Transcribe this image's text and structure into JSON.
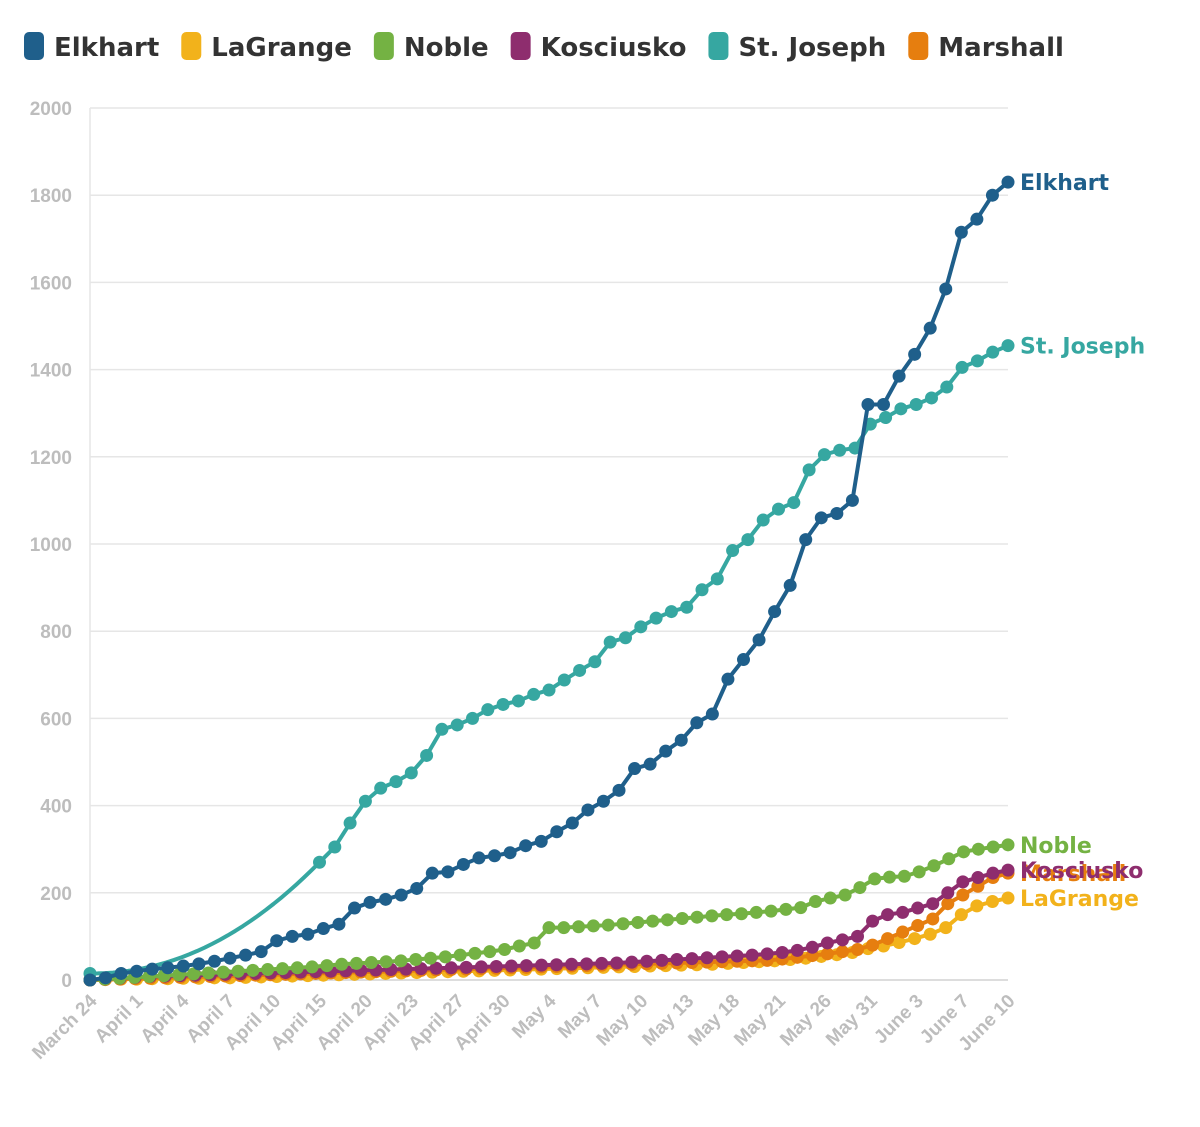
{
  "chart_data": {
    "type": "line",
    "ylim": [
      0,
      2000
    ],
    "yticks": [
      0,
      200,
      400,
      600,
      800,
      1000,
      1200,
      1400,
      1600,
      1800,
      2000
    ],
    "x_tick_labels": [
      {
        "label": "March 24",
        "day": 0
      },
      {
        "label": "April 1",
        "day": 3
      },
      {
        "label": "April 4",
        "day": 6
      },
      {
        "label": "April 7",
        "day": 9
      },
      {
        "label": "April 10",
        "day": 12
      },
      {
        "label": "April 15",
        "day": 15
      },
      {
        "label": "April 20",
        "day": 18
      },
      {
        "label": "April 23",
        "day": 21
      },
      {
        "label": "April 27",
        "day": 24
      },
      {
        "label": "April 30",
        "day": 27
      },
      {
        "label": "May 4",
        "day": 30
      },
      {
        "label": "May 7",
        "day": 33
      },
      {
        "label": "May 10",
        "day": 36
      },
      {
        "label": "May 13",
        "day": 39
      },
      {
        "label": "May 18",
        "day": 42
      },
      {
        "label": "May 21",
        "day": 45
      },
      {
        "label": "May 26",
        "day": 48
      },
      {
        "label": "May 31",
        "day": 51
      },
      {
        "label": "June 3",
        "day": 54
      },
      {
        "label": "June 7",
        "day": 57
      },
      {
        "label": "June 10",
        "day": 60
      }
    ],
    "grid": true,
    "legend_position": "top-left",
    "series": [
      {
        "name": "Elkhart",
        "color": "#1f5f8b",
        "end_label": "Elkhart",
        "values": [
          0,
          5,
          15,
          20,
          25,
          28,
          32,
          37,
          43,
          50,
          57,
          65,
          90,
          100,
          105,
          118,
          128,
          165,
          178,
          185,
          195,
          210,
          245,
          248,
          265,
          280,
          285,
          292,
          308,
          318,
          340,
          360,
          390,
          410,
          435,
          485,
          495,
          525,
          550,
          590,
          610,
          690,
          735,
          780,
          845,
          905,
          1010,
          1060,
          1070,
          1100,
          1320,
          1320,
          1385,
          1435,
          1495,
          1585,
          1715,
          1745,
          1800,
          1830
        ]
      },
      {
        "name": "LaGrange",
        "color": "#f2b21b",
        "end_label": "LaGrange",
        "values": [
          0,
          1,
          2,
          2,
          3,
          3,
          4,
          4,
          5,
          5,
          6,
          7,
          8,
          9,
          10,
          11,
          12,
          13,
          14,
          15,
          16,
          17,
          18,
          19,
          20,
          21,
          22,
          23,
          24,
          25,
          26,
          27,
          28,
          29,
          30,
          31,
          32,
          33,
          34,
          35,
          36,
          38,
          40,
          42,
          44,
          47,
          50,
          54,
          58,
          63,
          72,
          78,
          86,
          95,
          105,
          120,
          150,
          170,
          180,
          188
        ]
      },
      {
        "name": "Noble",
        "color": "#74b243",
        "end_label": "Noble",
        "values": [
          0,
          2,
          4,
          6,
          8,
          10,
          12,
          14,
          16,
          18,
          20,
          22,
          24,
          26,
          28,
          30,
          33,
          36,
          38,
          40,
          42,
          44,
          47,
          50,
          53,
          57,
          61,
          65,
          70,
          78,
          85,
          120,
          120,
          122,
          124,
          126,
          129,
          132,
          135,
          138,
          141,
          144,
          147,
          150,
          152,
          155,
          158,
          162,
          166,
          180,
          188,
          195,
          212,
          232,
          236,
          238,
          248,
          262,
          278,
          294,
          300,
          305,
          310
        ]
      },
      {
        "name": "Kosciusko",
        "color": "#8e2d6e",
        "end_label": "Kosciusko",
        "values": [
          0,
          2,
          4,
          6,
          8,
          9,
          10,
          11,
          12,
          13,
          14,
          15,
          16,
          17,
          18,
          19,
          20,
          21,
          22,
          23,
          24,
          25,
          26,
          27,
          28,
          29,
          30,
          31,
          32,
          33,
          34,
          35,
          36,
          37,
          38,
          39,
          41,
          43,
          45,
          47,
          49,
          51,
          53,
          55,
          57,
          60,
          63,
          68,
          75,
          85,
          92,
          100,
          135,
          150,
          155,
          165,
          175,
          200,
          225,
          235,
          245,
          252
        ]
      },
      {
        "name": "St. Joseph",
        "color": "#36a7a1",
        "end_label": "St. Joseph",
        "values": [
          15,
          270,
          305,
          360,
          410,
          440,
          455,
          475,
          515,
          575,
          585,
          600,
          620,
          632,
          640,
          655,
          665,
          688,
          710,
          730,
          775,
          785,
          810,
          830,
          845,
          855,
          895,
          920,
          985,
          1010,
          1055,
          1080,
          1095,
          1170,
          1205,
          1215,
          1220,
          1275,
          1290,
          1310,
          1320,
          1335,
          1360,
          1405,
          1420,
          1440,
          1455
        ]
      },
      {
        "name": "Marshall",
        "color": "#e67e0f",
        "end_label": "Marshall",
        "values": [
          0,
          1,
          2,
          3,
          4,
          5,
          6,
          7,
          8,
          9,
          10,
          11,
          12,
          13,
          14,
          15,
          16,
          17,
          18,
          19,
          20,
          21,
          22,
          23,
          24,
          25,
          26,
          27,
          28,
          29,
          30,
          31,
          32,
          33,
          34,
          35,
          36,
          37,
          38,
          39,
          40,
          41,
          42,
          43,
          44,
          45,
          48,
          52,
          56,
          60,
          65,
          70,
          80,
          95,
          110,
          125,
          140,
          175,
          195,
          215,
          235,
          245
        ]
      }
    ]
  }
}
